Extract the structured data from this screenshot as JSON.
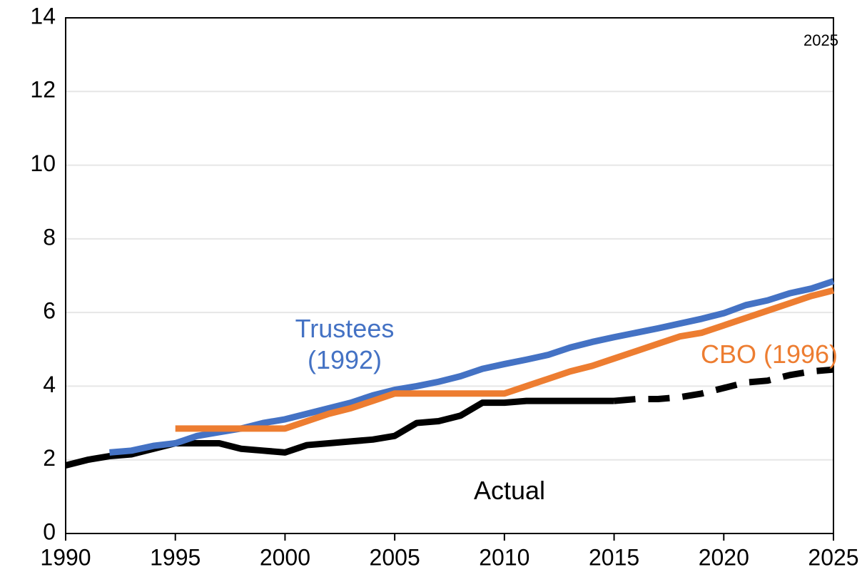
{
  "chart_data": {
    "type": "line",
    "annotation": "2025",
    "xlim": [
      1990,
      2025
    ],
    "xticks": [
      1990,
      1995,
      2000,
      2005,
      2010,
      2015,
      2020,
      2025
    ],
    "ylim": [
      0,
      14
    ],
    "yticks": [
      0,
      2,
      4,
      6,
      8,
      10,
      12,
      14
    ],
    "grid": true,
    "series": [
      {
        "name": "Actual",
        "color": "#000000",
        "dashed": false,
        "x": [
          1990,
          1991,
          1992,
          1993,
          1994,
          1995,
          1996,
          1997,
          1998,
          1999,
          2000,
          2001,
          2002,
          2003,
          2004,
          2005,
          2006,
          2007,
          2008,
          2009,
          2010,
          2011,
          2012,
          2013,
          2014,
          2015
        ],
        "values": [
          1.85,
          2.0,
          2.1,
          2.15,
          2.3,
          2.45,
          2.45,
          2.45,
          2.3,
          2.25,
          2.2,
          2.4,
          2.45,
          2.5,
          2.55,
          2.65,
          3.0,
          3.05,
          3.2,
          3.55,
          3.55,
          3.6,
          3.6,
          3.6,
          3.6,
          3.6
        ]
      },
      {
        "color": "#000000",
        "dashed": true,
        "x": [
          2015,
          2016,
          2017,
          2018,
          2019,
          2020,
          2021,
          2022,
          2023,
          2024,
          2025
        ],
        "values": [
          3.6,
          3.65,
          3.65,
          3.7,
          3.8,
          3.95,
          4.1,
          4.15,
          4.3,
          4.4,
          4.45
        ]
      },
      {
        "name": "Trustees (1992)",
        "color": "#4472c4",
        "dashed": false,
        "x": [
          1992,
          1993,
          1994,
          1995,
          1996,
          1997,
          1998,
          1999,
          2000,
          2001,
          2002,
          2003,
          2004,
          2005,
          2006,
          2007,
          2008,
          2009,
          2010,
          2011,
          2012,
          2013,
          2014,
          2015,
          2016,
          2017,
          2018,
          2019,
          2020,
          2021,
          2022,
          2023,
          2024,
          2025
        ],
        "values": [
          2.2,
          2.25,
          2.38,
          2.45,
          2.65,
          2.75,
          2.85,
          3.0,
          3.1,
          3.25,
          3.4,
          3.55,
          3.75,
          3.9,
          4.0,
          4.12,
          4.27,
          4.47,
          4.6,
          4.72,
          4.85,
          5.05,
          5.2,
          5.33,
          5.45,
          5.57,
          5.7,
          5.83,
          5.98,
          6.2,
          6.33,
          6.52,
          6.65,
          6.85
        ]
      },
      {
        "name": "CBO (1996)",
        "color": "#ed7d31",
        "dashed": false,
        "x": [
          1995,
          1996,
          1997,
          1998,
          1999,
          2000,
          2001,
          2002,
          2003,
          2004,
          2005,
          2006,
          2007,
          2008,
          2009,
          2010,
          2011,
          2012,
          2013,
          2014,
          2015,
          2016,
          2017,
          2018,
          2019,
          2020,
          2021,
          2022,
          2023,
          2024,
          2025
        ],
        "values": [
          2.85,
          2.85,
          2.85,
          2.85,
          2.85,
          2.85,
          3.05,
          3.25,
          3.4,
          3.6,
          3.8,
          3.8,
          3.8,
          3.8,
          3.8,
          3.8,
          4.0,
          4.2,
          4.4,
          4.55,
          4.75,
          4.95,
          5.15,
          5.35,
          5.45,
          5.65,
          5.85,
          6.05,
          6.25,
          6.45,
          6.6
        ]
      }
    ]
  }
}
